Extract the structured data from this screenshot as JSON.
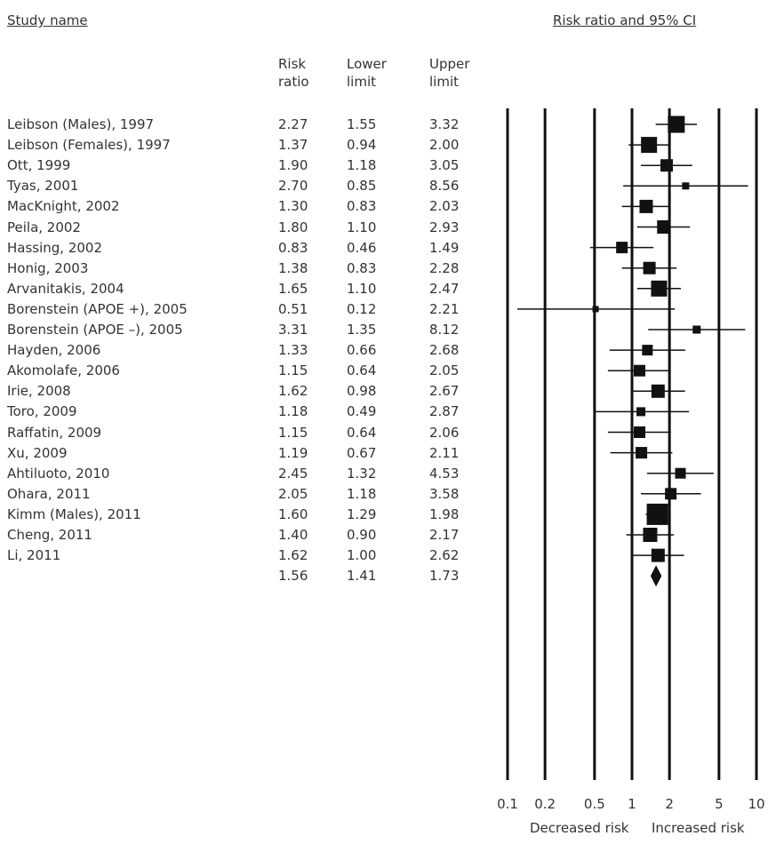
{
  "chart_data": {
    "type": "forest",
    "header": {
      "study_name": "Study name",
      "plot_title": "Risk ratio and 95% CI",
      "col_rr": [
        "Risk",
        "ratio"
      ],
      "col_lower": [
        "Lower",
        "limit"
      ],
      "col_upper": [
        "Upper",
        "limit"
      ]
    },
    "studies": [
      {
        "name": "Leibson (Males), 1997",
        "rr": "2.27",
        "lower": "1.55",
        "upper": "3.32",
        "weight": 0.75
      },
      {
        "name": "Leibson (Females), 1997",
        "rr": "1.37",
        "lower": "0.94",
        "upper": "2.00",
        "weight": 0.7
      },
      {
        "name": "Ott, 1999",
        "rr": "1.90",
        "lower": "1.18",
        "upper": "3.05",
        "weight": 0.5
      },
      {
        "name": "Tyas, 2001",
        "rr": "2.70",
        "lower": "0.85",
        "upper": "8.56",
        "weight": 0.2
      },
      {
        "name": "MacKnight, 2002",
        "rr": "1.30",
        "lower": "0.83",
        "upper": "2.03",
        "weight": 0.55
      },
      {
        "name": "Peila, 2002",
        "rr": "1.80",
        "lower": "1.10",
        "upper": "2.93",
        "weight": 0.55
      },
      {
        "name": "Hassing, 2002",
        "rr": "0.83",
        "lower": "0.46",
        "upper": "1.49",
        "weight": 0.45
      },
      {
        "name": "Honig, 2003",
        "rr": "1.38",
        "lower": "0.83",
        "upper": "2.28",
        "weight": 0.5
      },
      {
        "name": "Arvanitakis, 2004",
        "rr": "1.65",
        "lower": "1.10",
        "upper": "2.47",
        "weight": 0.7
      },
      {
        "name": "Borenstein (APOE +), 2005",
        "rr": "0.51",
        "lower": "0.12",
        "upper": "2.21",
        "weight": 0.15
      },
      {
        "name": "Borenstein (APOE –), 2005",
        "rr": "3.31",
        "lower": "1.35",
        "upper": "8.12",
        "weight": 0.25
      },
      {
        "name": "Hayden, 2006",
        "rr": "1.33",
        "lower": "0.66",
        "upper": "2.68",
        "weight": 0.4
      },
      {
        "name": "Akomolafe, 2006",
        "rr": "1.15",
        "lower": "0.64",
        "upper": "2.05",
        "weight": 0.45
      },
      {
        "name": "Irie, 2008",
        "rr": "1.62",
        "lower": "0.98",
        "upper": "2.67",
        "weight": 0.55
      },
      {
        "name": "Toro, 2009",
        "rr": "1.18",
        "lower": "0.49",
        "upper": "2.87",
        "weight": 0.3
      },
      {
        "name": "Raffatin, 2009",
        "rr": "1.15",
        "lower": "0.64",
        "upper": "2.06",
        "weight": 0.45
      },
      {
        "name": "Xu, 2009",
        "rr": "1.19",
        "lower": "0.67",
        "upper": "2.11",
        "weight": 0.45
      },
      {
        "name": "Ahtiluoto, 2010",
        "rr": "2.45",
        "lower": "1.32",
        "upper": "4.53",
        "weight": 0.4
      },
      {
        "name": "Ohara, 2011",
        "rr": "2.05",
        "lower": "1.18",
        "upper": "3.58",
        "weight": 0.45
      },
      {
        "name": "Kimm (Males), 2011",
        "rr": "1.60",
        "lower": "1.29",
        "upper": "1.98",
        "weight": 1.0
      },
      {
        "name": "Cheng, 2011",
        "rr": "1.40",
        "lower": "0.90",
        "upper": "2.17",
        "weight": 0.6
      },
      {
        "name": "Li, 2011",
        "rr": "1.62",
        "lower": "1.00",
        "upper": "2.62",
        "weight": 0.55
      }
    ],
    "summary": {
      "rr": "1.56",
      "lower": "1.41",
      "upper": "1.73"
    },
    "x_scale": "log",
    "xlim": [
      0.1,
      10
    ],
    "x_ticks": [
      0.1,
      0.2,
      0.5,
      1,
      2,
      5,
      10
    ],
    "x_tick_labels": [
      "0.1",
      "0.2",
      "0.5",
      "1",
      "2",
      "5",
      "10"
    ],
    "vertical_lines_at": [
      0.1,
      0.2,
      0.5,
      1,
      2,
      5,
      10
    ],
    "footer": {
      "left": "Decreased risk",
      "right": "Increased risk"
    },
    "colors": {
      "marks": "#111111",
      "text": "#333333"
    }
  }
}
